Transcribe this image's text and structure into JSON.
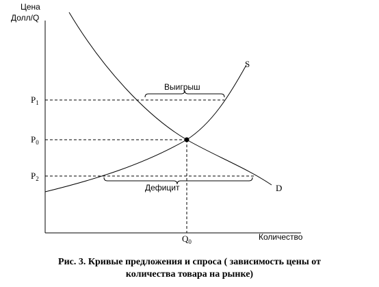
{
  "axes": {
    "y_label_line1": "Цена",
    "y_label_line2": "Долл/Q",
    "x_label": "Количество"
  },
  "ticks": {
    "p1": "P",
    "p1_sub": "1",
    "p0": "P",
    "p0_sub": "0",
    "p2": "P",
    "p2_sub": "2",
    "q0": "Q",
    "q0_sub": "0"
  },
  "curves": {
    "supply_label": "S",
    "demand_label": "D"
  },
  "annotations": {
    "surplus": "Выигрыш",
    "deficit": "Дефицит"
  },
  "caption": {
    "line1": "Рис. 3. Кривые предложения и спроса ( зависимость цены от",
    "line2": "количества товара на рынке)"
  }
}
